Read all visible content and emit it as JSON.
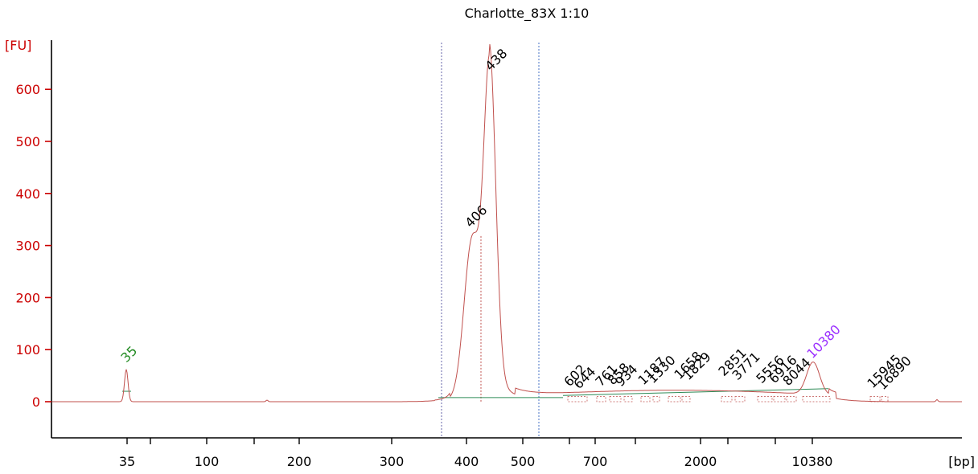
{
  "chart_data": {
    "type": "line",
    "title": "Charlotte_83X 1:10",
    "ylabel": "[FU]",
    "xlabel": "[bp]",
    "ylim": [
      -60,
      680
    ],
    "y_ticks": [
      0,
      100,
      200,
      300,
      400,
      500,
      600
    ],
    "x_tick_labels": [
      "35",
      "100",
      "200",
      "300",
      "400",
      "500",
      "700",
      "2000",
      "10380"
    ],
    "grid": false,
    "colors": {
      "trace": "#c0504d",
      "axis": "#cc0000",
      "marker_peak": "#228b22",
      "upper_marker_peak": "#9b30ff",
      "baseline": "#2e8b57",
      "region": "#6666aa"
    },
    "series": [
      {
        "values": [
          {
            "bp": 35,
            "fu": 65
          },
          {
            "bp": 406,
            "fu": 318
          },
          {
            "bp": 438,
            "fu": 625
          },
          {
            "bp": 10380,
            "fu": 75
          }
        ]
      }
    ],
    "peaks": [
      {
        "label": "35",
        "fu": 65,
        "kind": "lower_marker"
      },
      {
        "label": "406",
        "fu": 318,
        "kind": "sample"
      },
      {
        "label": "438",
        "fu": 625,
        "kind": "sample"
      },
      {
        "label": "602",
        "fu": 12,
        "kind": "sample"
      },
      {
        "label": "644",
        "fu": 13,
        "kind": "sample"
      },
      {
        "label": "761",
        "fu": 14,
        "kind": "sample"
      },
      {
        "label": "858",
        "fu": 15,
        "kind": "sample"
      },
      {
        "label": "934",
        "fu": 16,
        "kind": "sample"
      },
      {
        "label": "1187",
        "fu": 18,
        "kind": "sample"
      },
      {
        "label": "1330",
        "fu": 19,
        "kind": "sample"
      },
      {
        "label": "1658",
        "fu": 21,
        "kind": "sample"
      },
      {
        "label": "1829",
        "fu": 22,
        "kind": "sample"
      },
      {
        "label": "2851",
        "fu": 23,
        "kind": "sample"
      },
      {
        "label": "3771",
        "fu": 22,
        "kind": "sample"
      },
      {
        "label": "5556",
        "fu": 18,
        "kind": "sample"
      },
      {
        "label": "6916",
        "fu": 16,
        "kind": "sample"
      },
      {
        "label": "8044",
        "fu": 15,
        "kind": "sample"
      },
      {
        "label": "10380",
        "fu": 75,
        "kind": "upper_marker"
      },
      {
        "label": "15945",
        "fu": 8,
        "kind": "sample"
      },
      {
        "label": "16890",
        "fu": 6,
        "kind": "sample"
      }
    ]
  }
}
